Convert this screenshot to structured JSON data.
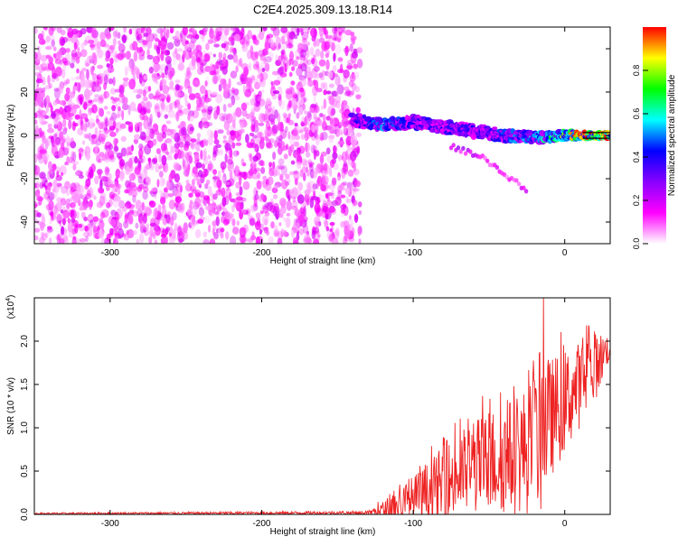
{
  "title": "C2E4.2025.309.13.18.R14",
  "chart_data": [
    {
      "type": "heatmap",
      "title": "C2E4.2025.309.13.18.R14",
      "xlabel": "Height of straight line (km)",
      "ylabel": "Frequency (Hz)",
      "xlim": [
        -350,
        30
      ],
      "ylim": [
        -50,
        50
      ],
      "x_ticks": [
        -300,
        -200,
        -100,
        0
      ],
      "x_tick_labels": [
        "-300",
        "-200",
        "-100",
        "0"
      ],
      "y_ticks": [
        -40,
        -20,
        0,
        20,
        40
      ],
      "y_tick_labels": [
        "-40",
        "-20",
        "0",
        "20",
        "40"
      ],
      "colorbar": {
        "label": "Normalized spectral amplitude",
        "range": [
          0,
          1
        ],
        "ticks": [
          0.0,
          0.2,
          0.4,
          0.6,
          0.8
        ],
        "tick_labels": [
          "0.0",
          "0.2",
          "0.4",
          "0.6",
          "0.8"
        ],
        "colors": [
          "#ffffff",
          "#ff00ff",
          "#8800ff",
          "#0000ff",
          "#00ffff",
          "#00ff00",
          "#ffff00",
          "#ff0000"
        ]
      },
      "noise_region": {
        "x_range": [
          -350,
          -135
        ],
        "y_range": [
          -50,
          50
        ],
        "typical_amplitude": 0.12
      },
      "signal_track": [
        {
          "x": -140,
          "freq": 7,
          "amp": 0.3
        },
        {
          "x": -120,
          "freq": 5,
          "amp": 0.45
        },
        {
          "x": -100,
          "freq": 6,
          "amp": 0.35
        },
        {
          "x": -80,
          "freq": 4,
          "amp": 0.35
        },
        {
          "x": -60,
          "freq": 2,
          "amp": 0.35
        },
        {
          "x": -40,
          "freq": 0,
          "amp": 0.4
        },
        {
          "x": -20,
          "freq": -1,
          "amp": 0.5
        },
        {
          "x": 0,
          "freq": 0,
          "amp": 0.7
        },
        {
          "x": 10,
          "freq": 0,
          "amp": 0.85
        },
        {
          "x": 30,
          "freq": 0,
          "amp": 0.95
        }
      ],
      "secondary_track": [
        {
          "x": -75,
          "freq": -5,
          "amp": 0.2
        },
        {
          "x": -55,
          "freq": -10,
          "amp": 0.15
        },
        {
          "x": -40,
          "freq": -18,
          "amp": 0.12
        },
        {
          "x": -25,
          "freq": -25,
          "amp": 0.15
        }
      ]
    },
    {
      "type": "line",
      "xlabel": "Height of straight line (km)",
      "ylabel": "SNR (10 * v/v)",
      "y_multiplier_label": "(x10",
      "y_multiplier_exponent": "4",
      "y_multiplier_close": ")",
      "xlim": [
        -350,
        30
      ],
      "ylim": [
        0,
        2.5
      ],
      "x_ticks": [
        -300,
        -200,
        -100,
        0
      ],
      "x_tick_labels": [
        "-300",
        "-200",
        "-100",
        "0"
      ],
      "y_ticks": [
        0.0,
        0.5,
        1.0,
        1.5,
        2.0
      ],
      "y_tick_labels": [
        "0.0",
        "0.5",
        "1.0",
        "1.5",
        "2.0"
      ],
      "series": [
        {
          "name": "SNR",
          "color": "#ee2222",
          "envelope_x": [
            -350,
            -130,
            -120,
            -110,
            -100,
            -90,
            -80,
            -70,
            -60,
            -50,
            -40,
            -30,
            -20,
            -15,
            -10,
            0,
            10,
            20,
            30
          ],
          "envelope_mean": [
            0.01,
            0.02,
            0.05,
            0.1,
            0.15,
            0.25,
            0.35,
            0.45,
            0.55,
            0.6,
            0.65,
            0.7,
            0.8,
            1.0,
            1.1,
            1.3,
            1.5,
            1.7,
            1.95
          ],
          "envelope_amp": [
            0.01,
            0.02,
            0.1,
            0.2,
            0.3,
            0.35,
            0.45,
            0.5,
            0.55,
            0.6,
            0.65,
            0.7,
            0.8,
            1.0,
            0.7,
            0.6,
            0.5,
            0.4,
            0.15
          ],
          "peak": {
            "x": -14,
            "y": 2.5
          }
        }
      ]
    }
  ]
}
